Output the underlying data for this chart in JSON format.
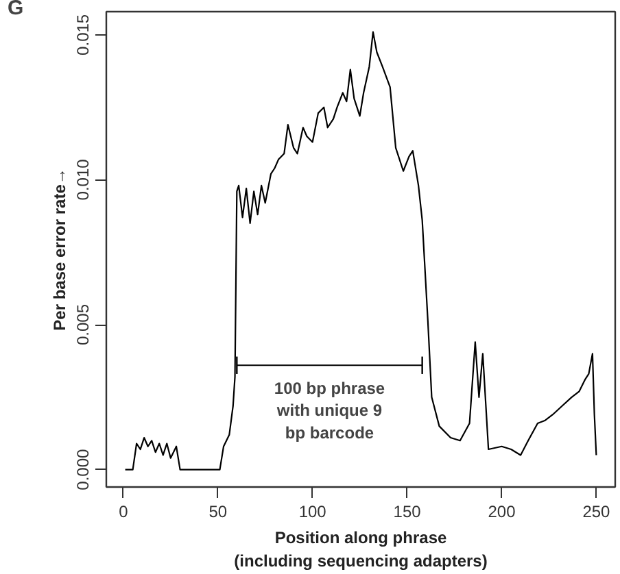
{
  "chart_data": {
    "type": "line",
    "xlabel": "Position along phrase\n(including sequencing adapters)",
    "ylabel": "Per base error rate→",
    "annotations": [
      "G",
      {
        "text": "100 bp phrase\nwith unique 9\nbp barcode",
        "x": 109,
        "y": 0.0036
      }
    ],
    "xlim": [
      -9,
      260
    ],
    "xticks": [
      0,
      50,
      100,
      150,
      200,
      250
    ],
    "ylim": [
      -0.0006,
      0.0158
    ],
    "yticks": [
      {
        "value": 0,
        "label": "0.000"
      },
      {
        "value": 0.005,
        "label": "0.005"
      },
      {
        "value": 0.01,
        "label": "0.010"
      },
      {
        "value": 0.015,
        "label": "0.015"
      }
    ],
    "grid": false,
    "marker": "none",
    "line_style": "solid",
    "series": [
      {
        "type": "line",
        "color": "#000000",
        "x": [
          60,
          158
        ],
        "values": [
          0.0036,
          0.0036
        ],
        "errors": [
          0.0003,
          0.0003
        ]
      },
      {
        "color": "#000000",
        "x": [
          1,
          5,
          7,
          9,
          11,
          13,
          15,
          17,
          19,
          21,
          23,
          25,
          28,
          30,
          32,
          40,
          51,
          53,
          56,
          58,
          59,
          60,
          61,
          63,
          65,
          67,
          69,
          71,
          73,
          75,
          78,
          80,
          82,
          85,
          87,
          90,
          92,
          95,
          97,
          100,
          103,
          106,
          108,
          111,
          113,
          116,
          118,
          120,
          122,
          125,
          127,
          130,
          132,
          134,
          137,
          141,
          144,
          148,
          151,
          153,
          156,
          158,
          161,
          163,
          167,
          173,
          178,
          183,
          186,
          188,
          190,
          193,
          200,
          205,
          210,
          214,
          219,
          223,
          227,
          232,
          237,
          241,
          244,
          246,
          248,
          249,
          250
        ],
        "values": [
          0,
          0,
          0.0009,
          0.0007,
          0.0011,
          0.0008,
          0.001,
          0.0006,
          0.0009,
          0.0005,
          0.0009,
          0.0004,
          0.0008,
          0,
          0,
          0,
          0,
          0.0008,
          0.0012,
          0.0022,
          0.0032,
          0.0096,
          0.0098,
          0.0087,
          0.0097,
          0.0085,
          0.0096,
          0.0088,
          0.0098,
          0.0092,
          0.0102,
          0.0104,
          0.0107,
          0.0109,
          0.0119,
          0.0111,
          0.0109,
          0.0118,
          0.0115,
          0.0113,
          0.0123,
          0.0125,
          0.0118,
          0.0121,
          0.0125,
          0.013,
          0.0127,
          0.0138,
          0.0128,
          0.0122,
          0.013,
          0.0139,
          0.0151,
          0.0144,
          0.0139,
          0.0132,
          0.0111,
          0.0103,
          0.0108,
          0.011,
          0.0098,
          0.0086,
          0.0051,
          0.0025,
          0.0015,
          0.0011,
          0.001,
          0.0016,
          0.0044,
          0.0025,
          0.004,
          0.0007,
          0.0008,
          0.0007,
          0.0005,
          0.001,
          0.0016,
          0.0017,
          0.0019,
          0.0022,
          0.0025,
          0.0027,
          0.0031,
          0.0033,
          0.004,
          0.0019,
          0.0005
        ]
      }
    ]
  }
}
